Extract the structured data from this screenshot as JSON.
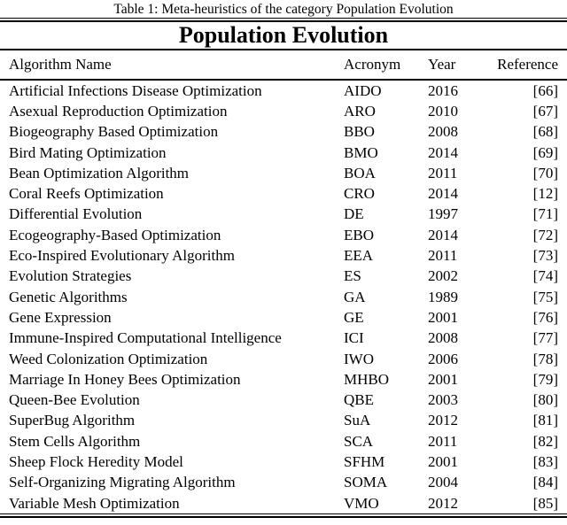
{
  "caption": "Table 1: Meta-heuristics of the category Population Evolution",
  "table": {
    "title": "Population Evolution",
    "columns": [
      "Algorithm Name",
      "Acronym",
      "Year",
      "Reference"
    ],
    "rows": [
      {
        "name": "Artificial Infections Disease Optimization",
        "acronym": "AIDO",
        "year": "2016",
        "reference": "[66]"
      },
      {
        "name": "Asexual Reproduction Optimization",
        "acronym": "ARO",
        "year": "2010",
        "reference": "[67]"
      },
      {
        "name": "Biogeography Based Optimization",
        "acronym": "BBO",
        "year": "2008",
        "reference": "[68]"
      },
      {
        "name": "Bird Mating Optimization",
        "acronym": "BMO",
        "year": "2014",
        "reference": "[69]"
      },
      {
        "name": "Bean Optimization Algorithm",
        "acronym": "BOA",
        "year": "2011",
        "reference": "[70]"
      },
      {
        "name": "Coral Reefs Optimization",
        "acronym": "CRO",
        "year": "2014",
        "reference": "[12]"
      },
      {
        "name": "Differential Evolution",
        "acronym": "DE",
        "year": "1997",
        "reference": "[71]"
      },
      {
        "name": "Ecogeography-Based Optimization",
        "acronym": "EBO",
        "year": "2014",
        "reference": "[72]"
      },
      {
        "name": "Eco-Inspired Evolutionary Algorithm",
        "acronym": "EEA",
        "year": "2011",
        "reference": "[73]"
      },
      {
        "name": "Evolution Strategies",
        "acronym": "ES",
        "year": "2002",
        "reference": "[74]"
      },
      {
        "name": "Genetic Algorithms",
        "acronym": "GA",
        "year": "1989",
        "reference": "[75]"
      },
      {
        "name": "Gene Expression",
        "acronym": "GE",
        "year": "2001",
        "reference": "[76]"
      },
      {
        "name": "Immune-Inspired Computational Intelligence",
        "acronym": "ICI",
        "year": "2008",
        "reference": "[77]"
      },
      {
        "name": "Weed Colonization Optimization",
        "acronym": "IWO",
        "year": "2006",
        "reference": "[78]"
      },
      {
        "name": "Marriage In Honey Bees Optimization",
        "acronym": "MHBO",
        "year": "2001",
        "reference": "[79]"
      },
      {
        "name": "Queen-Bee Evolution",
        "acronym": "QBE",
        "year": "2003",
        "reference": "[80]"
      },
      {
        "name": "SuperBug Algorithm",
        "acronym": "SuA",
        "year": "2012",
        "reference": "[81]"
      },
      {
        "name": "Stem Cells Algorithm",
        "acronym": "SCA",
        "year": "2011",
        "reference": "[82]"
      },
      {
        "name": "Sheep Flock Heredity Model",
        "acronym": "SFHM",
        "year": "2001",
        "reference": "[83]"
      },
      {
        "name": "Self-Organizing Migrating Algorithm",
        "acronym": "SOMA",
        "year": "2004",
        "reference": "[84]"
      },
      {
        "name": "Variable Mesh Optimization",
        "acronym": "VMO",
        "year": "2012",
        "reference": "[85]"
      }
    ]
  },
  "colors": {
    "text": "#000000",
    "background": "#ffffff",
    "rule": "#000000"
  }
}
